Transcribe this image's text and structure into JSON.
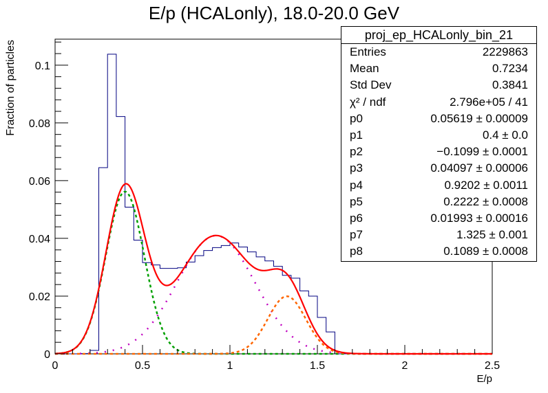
{
  "page": {
    "title": "E/p (HCALonly), 18.0-20.0 GeV"
  },
  "stats_box": {
    "name": "proj_ep_HCALonly_bin_21",
    "rows": [
      {
        "k": "Entries",
        "v": "2229863"
      },
      {
        "k": "Mean",
        "v": "0.7234"
      },
      {
        "k": "Std Dev",
        "v": "0.3841"
      },
      {
        "k": "χ² / ndf",
        "v": "2.796e+05 / 41"
      },
      {
        "k": "p0",
        "v": "0.05619 ± 0.00009"
      },
      {
        "k": "p1",
        "v": "0.4 ± 0.0"
      },
      {
        "k": "p2",
        "v": "−0.1099 ± 0.0001"
      },
      {
        "k": "p3",
        "v": "0.04097 ± 0.00006"
      },
      {
        "k": "p4",
        "v": "0.9202 ± 0.0011"
      },
      {
        "k": "p5",
        "v": "0.2222 ± 0.0008"
      },
      {
        "k": "p6",
        "v": "0.01993 ± 0.00016"
      },
      {
        "k": "p7",
        "v": "1.325 ± 0.001"
      },
      {
        "k": "p8",
        "v": "0.1089 ± 0.0008"
      }
    ]
  },
  "chart_data": {
    "type": "line",
    "title": "E/p (HCALonly), 18.0-20.0 GeV",
    "xlabel": "E/p",
    "ylabel": "Fraction of particles",
    "xlim": [
      0,
      2.5
    ],
    "ylim": [
      0,
      0.109
    ],
    "x_ticks": [
      0,
      0.5,
      1,
      1.5,
      2,
      2.5
    ],
    "x_tick_labels": [
      "0",
      "0.5",
      "1",
      "1.5",
      "2",
      "2.5"
    ],
    "y_ticks": [
      0,
      0.02,
      0.04,
      0.06,
      0.08,
      0.1
    ],
    "y_tick_labels": [
      "0",
      "0.02",
      "0.04",
      "0.06",
      "0.08",
      "0.1"
    ],
    "histogram": {
      "bin_edges": [
        0.0,
        0.05,
        0.1,
        0.15,
        0.2,
        0.25,
        0.3,
        0.35,
        0.4,
        0.45,
        0.5,
        0.55,
        0.6,
        0.65,
        0.7,
        0.75,
        0.8,
        0.85,
        0.9,
        0.95,
        1.0,
        1.05,
        1.1,
        1.15,
        1.2,
        1.25,
        1.3,
        1.35,
        1.4,
        1.45,
        1.5,
        1.55,
        1.6,
        1.65,
        1.7,
        1.75,
        1.8,
        1.85,
        1.9,
        1.95,
        2.0,
        2.05,
        2.1,
        2.15,
        2.2,
        2.25,
        2.3,
        2.35,
        2.4,
        2.45,
        2.5
      ],
      "values": [
        0.0,
        0.0,
        0.0,
        0.0001,
        0.0012,
        0.0645,
        0.1038,
        0.0822,
        0.0508,
        0.0394,
        0.0316,
        0.0308,
        0.0296,
        0.0296,
        0.0298,
        0.0318,
        0.034,
        0.0358,
        0.0368,
        0.0375,
        0.0384,
        0.037,
        0.0353,
        0.0336,
        0.0322,
        0.0303,
        0.0272,
        0.0262,
        0.0218,
        0.02,
        0.0126,
        0.0076,
        0.0,
        0.0,
        0.0,
        0.0,
        0.0,
        0.0,
        0.0,
        0.0,
        0.0,
        0.0,
        0.0,
        0.0,
        0.0,
        0.0,
        0.0,
        0.0,
        0.0,
        0.0
      ],
      "color": "#000080"
    },
    "fit_components": [
      {
        "shape": "gaussian",
        "amplitude": 0.05619,
        "mean": 0.4,
        "sigma": 0.1099,
        "color": "#00a000",
        "dash": "4,4"
      },
      {
        "shape": "gaussian",
        "amplitude": 0.04097,
        "mean": 0.9202,
        "sigma": 0.2222,
        "color": "#c000c0",
        "dash": "2,10"
      },
      {
        "shape": "gaussian",
        "amplitude": 0.01993,
        "mean": 1.325,
        "sigma": 0.1089,
        "color": "#ff6600",
        "dash": "4,4"
      }
    ],
    "total_fit": {
      "color": "#ff0000"
    },
    "grid": false,
    "legend": "stats box top-right"
  }
}
